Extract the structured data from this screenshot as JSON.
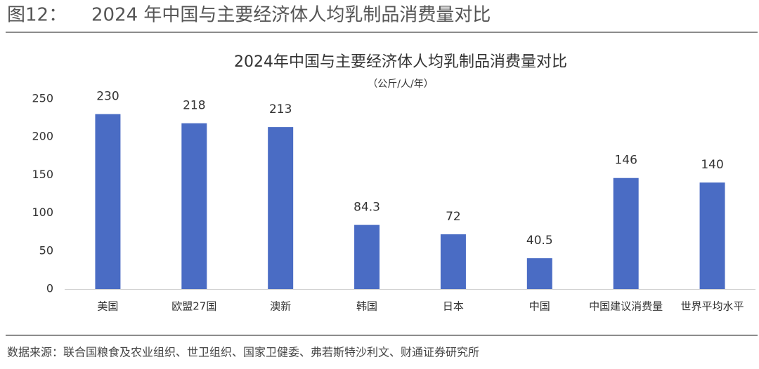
{
  "header": {
    "figure_label": "图12：",
    "title": "2024 年中国与主要经济体人均乳制品消费量对比"
  },
  "chart_data": {
    "type": "bar",
    "title": "2024年中国与主要经济体人均乳制品消费量对比",
    "subtitle": "（公斤/人/年）",
    "categories": [
      "美国",
      "欧盟27国",
      "澳新",
      "韩国",
      "日本",
      "中国",
      "中国建议消费量",
      "世界平均水平"
    ],
    "values": [
      230,
      218,
      213,
      84.3,
      72,
      40.5,
      146,
      140
    ],
    "color": "#4a6cc4",
    "ylim": [
      0,
      250
    ],
    "yticks": [
      0,
      50,
      100,
      150,
      200,
      250
    ],
    "grid": false
  },
  "source": "数据来源：联合国粮食及农业组织、世卫组织、国家卫健委、弗若斯特沙利文、财通证券研究所"
}
